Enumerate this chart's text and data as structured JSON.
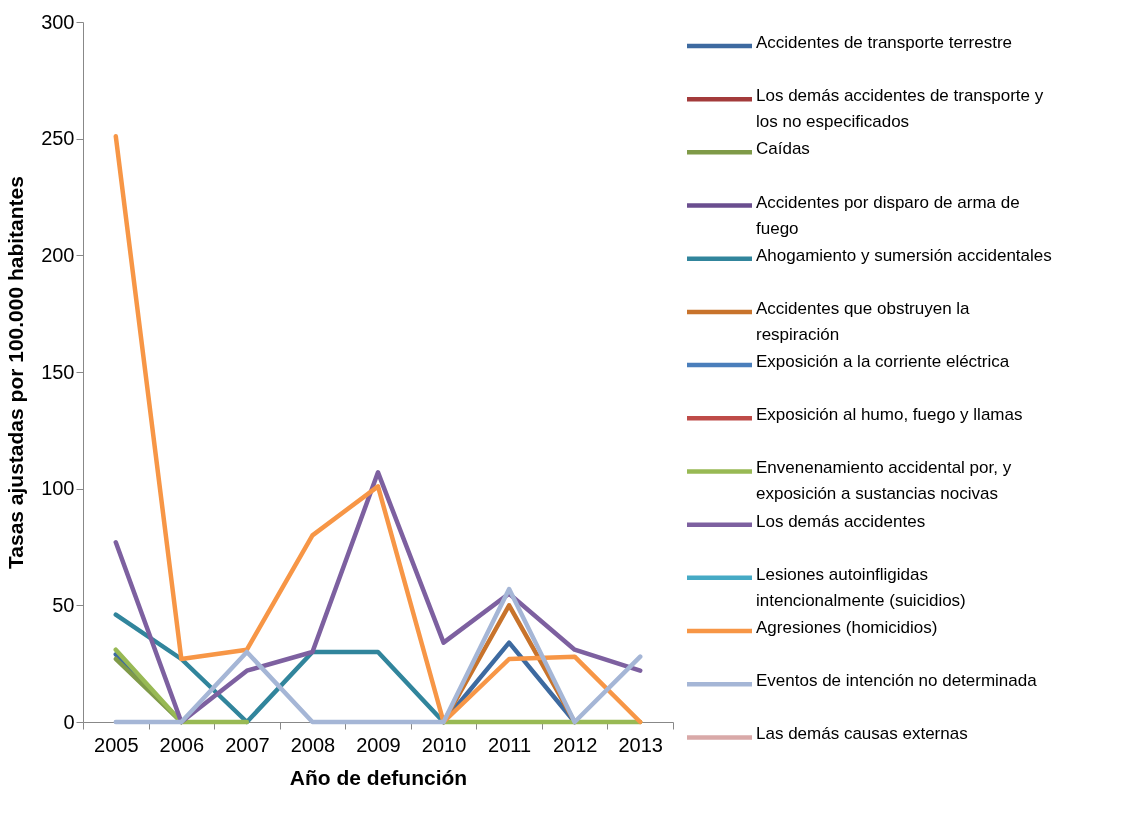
{
  "chart_data": {
    "type": "line",
    "xlabel": "Año de defunción",
    "ylabel": "Tasas ajustadas por 100.000 habitantes",
    "categories": [
      "2005",
      "2006",
      "2007",
      "2008",
      "2009",
      "2010",
      "2011",
      "2012",
      "2013"
    ],
    "ylim": [
      0,
      300
    ],
    "yticks": [
      0,
      50,
      100,
      150,
      200,
      250,
      300
    ],
    "grid": false,
    "legend": "right",
    "marker": "none",
    "line_style": "solid",
    "series": [
      {
        "name": "Accidentes de transporte terrestre",
        "color": "#3d6aa0",
        "values": [
          29,
          0,
          null,
          null,
          null,
          0,
          34,
          0,
          null
        ]
      },
      {
        "name": "Los demás accidentes de transporte y los no especificados",
        "color": "#a33b3b",
        "values": [
          null,
          null,
          null,
          null,
          null,
          null,
          null,
          null,
          null
        ]
      },
      {
        "name": "Caídas",
        "color": "#7f9a48",
        "values": [
          27,
          0,
          null,
          null,
          null,
          null,
          null,
          null,
          null
        ]
      },
      {
        "name": "Accidentes por disparo de arma de fuego",
        "color": "#6a4e8f",
        "values": [
          null,
          null,
          null,
          null,
          null,
          null,
          null,
          null,
          null
        ]
      },
      {
        "name": "Ahogamiento y sumersión accidentales",
        "color": "#31859c",
        "values": [
          46,
          27,
          0,
          30,
          30,
          0,
          null,
          null,
          null
        ]
      },
      {
        "name": "Accidentes que obstruyen la respiración",
        "color": "#c8732b",
        "values": [
          null,
          null,
          null,
          null,
          null,
          0,
          50,
          0,
          null
        ]
      },
      {
        "name": "Exposición a la corriente eléctrica",
        "color": "#4a7ebb",
        "values": [
          null,
          null,
          null,
          null,
          null,
          null,
          null,
          null,
          null
        ]
      },
      {
        "name": "Exposición al humo, fuego y llamas",
        "color": "#be4b48",
        "values": [
          null,
          null,
          null,
          null,
          null,
          null,
          null,
          null,
          null
        ]
      },
      {
        "name": "Envenenamiento accidental por, y exposición a sustancias nocivas",
        "color": "#98b954",
        "values": [
          31,
          0,
          0,
          null,
          null,
          0,
          0,
          0,
          0
        ]
      },
      {
        "name": "Los demás accidentes",
        "color": "#7d60a0",
        "values": [
          77,
          0,
          22,
          30,
          107,
          34,
          55,
          31,
          22
        ]
      },
      {
        "name": "Lesiones autoinfligidas intencionalmente (suicidios)",
        "color": "#46aac5",
        "values": [
          null,
          null,
          null,
          null,
          null,
          null,
          null,
          null,
          null
        ]
      },
      {
        "name": "Agresiones (homicidios)",
        "color": "#f79646",
        "values": [
          251,
          27,
          31,
          80,
          101,
          0,
          27,
          28,
          0
        ]
      },
      {
        "name": "Eventos de intención no determinada",
        "color": "#a5b6d6",
        "values": [
          0,
          0,
          30,
          0,
          0,
          0,
          57,
          0,
          28
        ]
      },
      {
        "name": "Las demás causas externas",
        "color": "#d9a9a8",
        "values": [
          null,
          null,
          null,
          null,
          null,
          null,
          null,
          null,
          null
        ]
      }
    ]
  }
}
